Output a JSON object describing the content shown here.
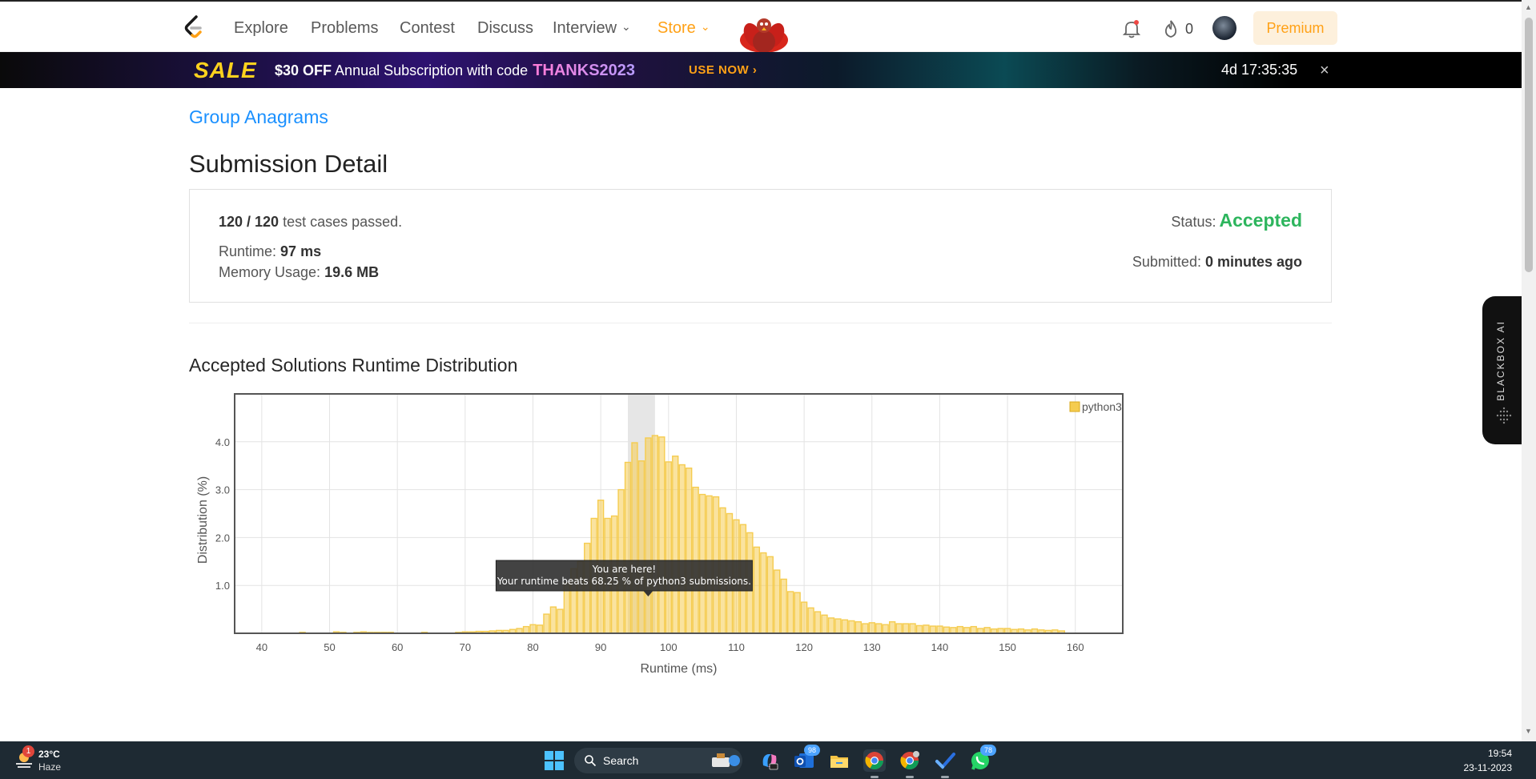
{
  "nav": {
    "items": [
      "Explore",
      "Problems",
      "Contest",
      "Discuss",
      "Interview",
      "Store"
    ],
    "streak_count": "0",
    "premium_label": "Premium"
  },
  "banner": {
    "sale": "SALE",
    "offer_bold": "$30 OFF",
    "offer_text": "Annual Subscription with code",
    "code": "THANKS2023",
    "cta": "USE NOW",
    "countdown": "4d 17:35:35",
    "close": "×"
  },
  "problem": {
    "title": "Group Anagrams"
  },
  "page_title": "Submission Detail",
  "submission": {
    "passed_count": "120 / 120",
    "passed_text": "test cases passed.",
    "runtime_label": "Runtime:",
    "runtime_value": "97 ms",
    "memory_label": "Memory Usage:",
    "memory_value": "19.6 MB",
    "status_label": "Status:",
    "status_value": "Accepted",
    "submitted_label": "Submitted:",
    "submitted_value": "0 minutes ago"
  },
  "distribution_title": "Accepted Solutions Runtime Distribution",
  "chart_data": {
    "type": "bar",
    "xlabel": "Runtime (ms)",
    "ylabel": "Distribution (%)",
    "x_ticks": [
      40,
      50,
      60,
      70,
      80,
      90,
      100,
      110,
      120,
      130,
      140,
      150,
      160
    ],
    "y_ticks": [
      "1.0",
      "2.0",
      "3.0",
      "4.0"
    ],
    "xlim": [
      36,
      167
    ],
    "ylim": [
      0,
      5.0
    ],
    "grid": true,
    "legend_position": "top-right",
    "highlight_range": [
      94,
      98
    ],
    "series": [
      {
        "name": "python3",
        "color": "#f5cc50",
        "x": [
          46,
          51,
          52,
          54,
          55,
          56,
          57,
          58,
          59,
          64,
          69,
          70,
          71,
          72,
          73,
          74,
          75,
          76,
          77,
          78,
          79,
          80,
          81,
          82,
          83,
          84,
          85,
          86,
          87,
          88,
          89,
          90,
          91,
          92,
          93,
          94,
          95,
          96,
          97,
          98,
          99,
          100,
          101,
          102,
          103,
          104,
          105,
          106,
          107,
          108,
          109,
          110,
          111,
          112,
          113,
          114,
          115,
          116,
          117,
          118,
          119,
          120,
          121,
          122,
          123,
          124,
          125,
          126,
          127,
          128,
          129,
          130,
          131,
          132,
          133,
          134,
          135,
          136,
          137,
          138,
          139,
          140,
          141,
          142,
          143,
          144,
          145,
          146,
          147,
          148,
          149,
          150,
          151,
          152,
          153,
          154,
          155,
          156,
          157,
          158
        ],
        "values": [
          0.02,
          0.03,
          0.02,
          0.02,
          0.03,
          0.02,
          0.02,
          0.02,
          0.02,
          0.02,
          0.02,
          0.03,
          0.03,
          0.04,
          0.04,
          0.05,
          0.06,
          0.06,
          0.08,
          0.1,
          0.14,
          0.18,
          0.17,
          0.4,
          0.55,
          0.5,
          1.05,
          1.35,
          1.5,
          1.88,
          2.4,
          2.78,
          2.4,
          2.45,
          3.0,
          3.57,
          3.98,
          3.6,
          4.08,
          4.13,
          4.1,
          3.58,
          3.7,
          3.52,
          3.45,
          3.05,
          2.9,
          2.87,
          2.85,
          2.62,
          2.5,
          2.37,
          2.27,
          2.1,
          1.8,
          1.68,
          1.6,
          1.32,
          1.13,
          0.87,
          0.85,
          0.65,
          0.53,
          0.45,
          0.38,
          0.32,
          0.3,
          0.28,
          0.26,
          0.24,
          0.2,
          0.22,
          0.2,
          0.18,
          0.24,
          0.2,
          0.2,
          0.2,
          0.16,
          0.17,
          0.15,
          0.15,
          0.13,
          0.12,
          0.14,
          0.12,
          0.14,
          0.1,
          0.12,
          0.09,
          0.1,
          0.1,
          0.08,
          0.09,
          0.07,
          0.09,
          0.07,
          0.06,
          0.07,
          0.05
        ]
      }
    ],
    "annotation": {
      "title": "You are here!",
      "text": "Your runtime beats 68.25 % of python3 submissions."
    }
  },
  "blackbox": {
    "label": "BLACKBOX AI"
  },
  "taskbar": {
    "weather_badge": "1",
    "temperature": "23°C",
    "condition": "Haze",
    "search_label": "Search",
    "outlook_badge": "98",
    "whatsapp_badge": "78",
    "time": "19:54",
    "date": "23-11-2023"
  }
}
